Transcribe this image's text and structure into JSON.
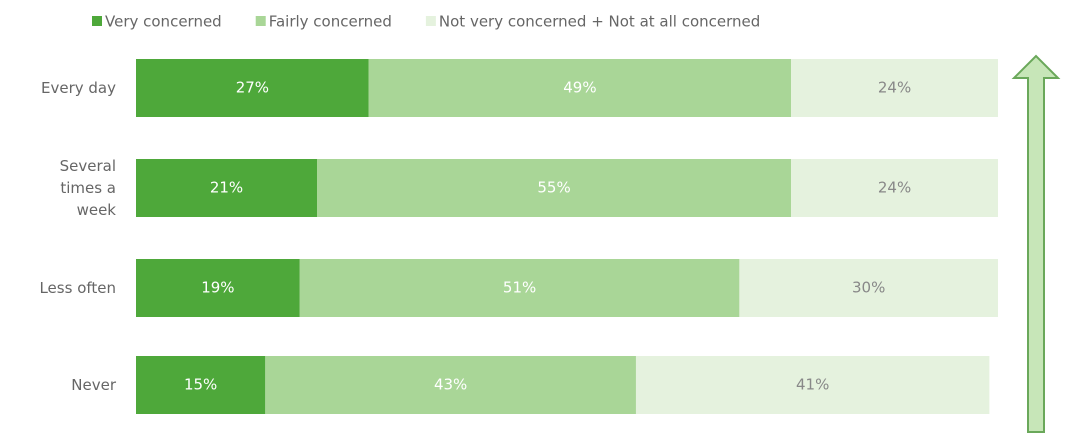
{
  "chart_data": {
    "type": "stacked-bar-horizontal",
    "categories": [
      "Every day",
      "Several times a week",
      "Less often",
      "Never"
    ],
    "xlim": [
      0,
      100
    ],
    "series": [
      {
        "name": "Very concerned",
        "color": "#4ea83a",
        "values": [
          27,
          21,
          19,
          15
        ],
        "value_labels": [
          "27%",
          "21%",
          "19%",
          "15%"
        ]
      },
      {
        "name": "Fairly concerned",
        "color": "#a9d697",
        "values": [
          49,
          55,
          51,
          43
        ],
        "value_labels": [
          "49%",
          "55%",
          "51%",
          "43%"
        ]
      },
      {
        "name": "Not very concerned + Not at all concerned",
        "color": "#e5f2de",
        "values": [
          24,
          24,
          30,
          41
        ],
        "value_labels": [
          "24%",
          "24%",
          "30%",
          "41%"
        ]
      }
    ]
  }
}
